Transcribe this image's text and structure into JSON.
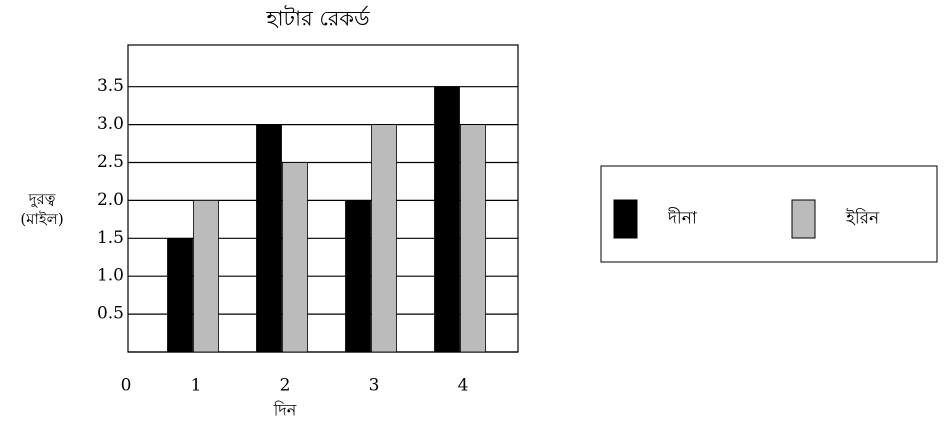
{
  "chart_data": {
    "type": "bar",
    "title": "হাটার রেকর্ড",
    "xlabel": "দিন",
    "ylabel": [
      "দুরত্ব",
      "(মাইল)"
    ],
    "categories": [
      "1",
      "2",
      "3",
      "4"
    ],
    "series": [
      {
        "name": "দীনা",
        "color": "#000000",
        "values": [
          1.5,
          3,
          2,
          3.5
        ]
      },
      {
        "name": "ইরিন",
        "color": "#bbbbbb",
        "values": [
          2,
          2.5,
          3,
          3
        ]
      }
    ],
    "ylim": [
      0,
      4.05
    ],
    "yticks": [
      0,
      0.5,
      {
        "value": 1,
        "label": "1.0"
      },
      1.5,
      {
        "value": 2,
        "label": "2.0"
      },
      2.5,
      {
        "value": 3,
        "label": "3.0"
      },
      3.5
    ],
    "grid": true,
    "legend": "right"
  }
}
